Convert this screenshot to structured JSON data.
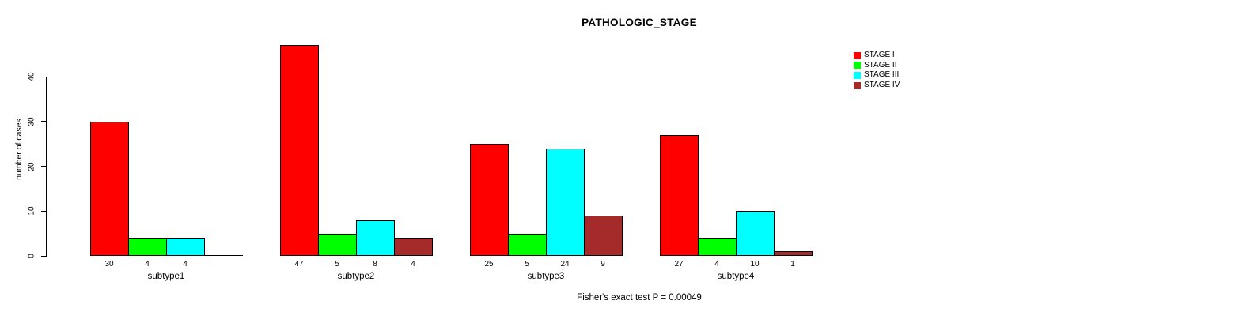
{
  "chart_data": {
    "type": "bar",
    "title": "PATHOLOGIC_STAGE",
    "ylabel": "number of cases",
    "footer": "Fisher's exact test P = 0.00049",
    "categories": [
      "subtype1",
      "subtype2",
      "subtype3",
      "subtype4"
    ],
    "series": [
      {
        "name": "STAGE I",
        "color": "#FF0000",
        "values": [
          30,
          47,
          25,
          27
        ]
      },
      {
        "name": "STAGE II",
        "color": "#00FF00",
        "values": [
          4,
          5,
          5,
          4
        ]
      },
      {
        "name": "STAGE III",
        "color": "#00FFFF",
        "values": [
          4,
          8,
          24,
          10
        ]
      },
      {
        "name": "STAGE IV",
        "color": "#A52A2A",
        "values": [
          null,
          4,
          9,
          1
        ]
      }
    ],
    "yticks": [
      0,
      10,
      20,
      30,
      40
    ],
    "ylim": [
      0,
      47
    ],
    "grid": false,
    "legend_position": "top-right"
  }
}
